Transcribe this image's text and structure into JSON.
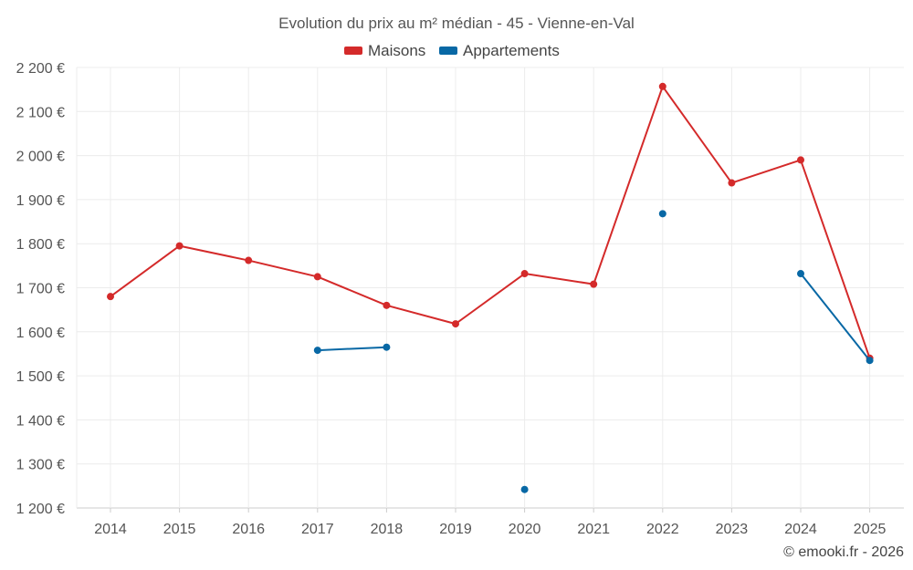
{
  "chart_data": {
    "type": "line",
    "title": "Evolution du prix au m² médian - 45 - Vienne-en-Val",
    "categories": [
      "2014",
      "2015",
      "2016",
      "2017",
      "2018",
      "2019",
      "2020",
      "2021",
      "2022",
      "2023",
      "2024",
      "2025"
    ],
    "y_tick_labels": [
      "2 200 €",
      "2 100 €",
      "2 000 €",
      "1 900 €",
      "1 800 €",
      "1 700 €",
      "1 600 €",
      "1 500 €",
      "1 400 €",
      "1 300 €",
      "1 200 €"
    ],
    "y_ticks": [
      2200,
      2100,
      2000,
      1900,
      1800,
      1700,
      1600,
      1500,
      1400,
      1300,
      1200
    ],
    "ylim": [
      1200,
      2200
    ],
    "grid": true,
    "legend_position": "top-center",
    "series": [
      {
        "name": "Maisons",
        "color": "#d42a2a",
        "values": [
          1680,
          1795,
          1762,
          1725,
          1660,
          1618,
          1732,
          1708,
          2157,
          1938,
          1990,
          1540
        ]
      },
      {
        "name": "Appartements",
        "color": "#0868a5",
        "values": [
          null,
          null,
          null,
          1558,
          1565,
          null,
          1242,
          null,
          1868,
          null,
          1732,
          1535
        ]
      }
    ],
    "credit": "© emooki.fr - 2026"
  }
}
